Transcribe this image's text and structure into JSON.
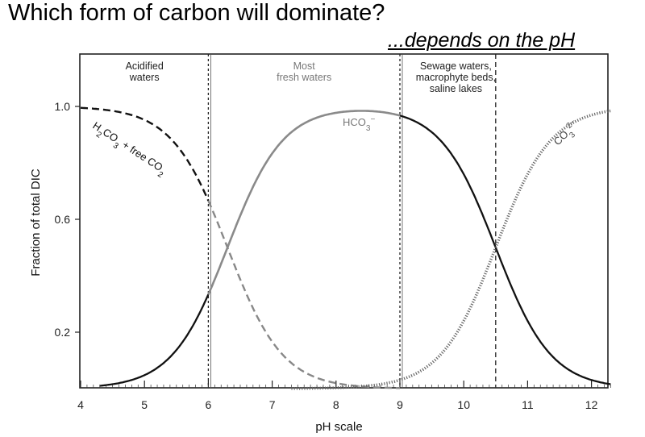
{
  "slide": {
    "title": "Which form of carbon will dominate?",
    "subtitle": "...depends on the pH"
  },
  "chart_data": {
    "type": "line",
    "xlabel": "pH scale",
    "ylabel": "Fraction of total DIC",
    "xlim": [
      4,
      12.3
    ],
    "ylim": [
      0,
      1.2
    ],
    "xticks": [
      4,
      5,
      6,
      7,
      8,
      9,
      10,
      11,
      12
    ],
    "yticks": [
      0.2,
      0.6,
      1.0
    ],
    "ytick_labels": [
      "0.2",
      "0.6",
      "1.0"
    ],
    "pKa1": 6.3,
    "pKa2": 10.5,
    "series": [
      {
        "name": "H2CO3 + free CO2",
        "label_parts": [
          "H",
          "2",
          "CO",
          "3",
          " + free CO",
          "2"
        ],
        "color": "#111111",
        "color2": "#888888",
        "style": "dashed"
      },
      {
        "name": "HCO3-",
        "label_parts": [
          "HCO",
          "3",
          "−"
        ],
        "color": "#8a8a8a",
        "color2": "#111111",
        "style": "solid"
      },
      {
        "name": "CO3 2-",
        "label_parts": [
          "CO",
          "3",
          "2−"
        ],
        "color": "#666666",
        "style": "dotted"
      }
    ],
    "sample_points": {
      "x": [
        4.0,
        5.0,
        6.0,
        6.3,
        7.0,
        8.0,
        8.4,
        9.0,
        10.0,
        10.5,
        11.0,
        12.0
      ],
      "H2CO3": [
        0.995,
        0.952,
        0.666,
        0.5,
        0.166,
        0.019,
        0.008,
        0.002,
        0.0,
        0.0,
        0.0,
        0.0
      ],
      "HCO3": [
        0.005,
        0.048,
        0.334,
        0.5,
        0.834,
        0.978,
        0.983,
        0.967,
        0.759,
        0.5,
        0.24,
        0.03
      ],
      "CO3": [
        0.0,
        0.0,
        0.0,
        0.0,
        0.0,
        0.003,
        0.009,
        0.031,
        0.241,
        0.5,
        0.76,
        0.97
      ]
    },
    "regions": [
      {
        "name": "Acidified waters",
        "lines": [
          "Acidified",
          "waters"
        ],
        "from": 4,
        "to": 6
      },
      {
        "name": "Most fresh waters",
        "lines": [
          "Most",
          "fresh waters"
        ],
        "from": 6,
        "to": 9
      },
      {
        "name": "Sewage waters, macrophyte beds, saline lakes",
        "lines": [
          "Sewage waters,",
          "macrophyte beds,",
          "saline lakes"
        ],
        "from": 9,
        "to": 10.5
      }
    ],
    "region_dividers": [
      6,
      9,
      10.5
    ]
  }
}
